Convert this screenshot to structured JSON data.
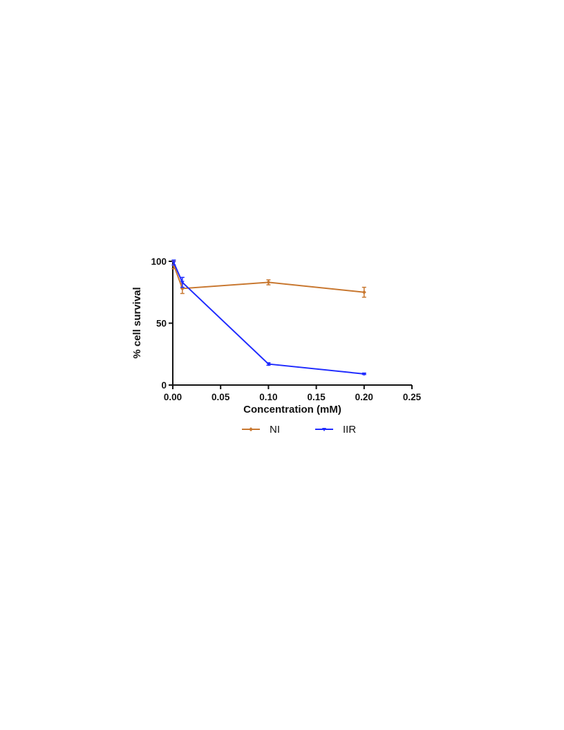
{
  "chart_data": {
    "type": "line",
    "xlabel": "Concentration (mM)",
    "ylabel": "% cell survival",
    "xlim": [
      0,
      0.25
    ],
    "ylim": [
      0,
      100
    ],
    "x_ticks": [
      "0.00",
      "0.05",
      "0.10",
      "0.15",
      "0.20",
      "0.25"
    ],
    "y_ticks": [
      "0",
      "50",
      "100"
    ],
    "grid": false,
    "legend_position": "bottom",
    "series": [
      {
        "name": "NI",
        "color": "#c8772f",
        "marker": "diamond",
        "x": [
          0.001,
          0.01,
          0.1,
          0.2
        ],
        "y": [
          97,
          78,
          83,
          75
        ],
        "error": [
          3,
          4,
          2,
          4
        ]
      },
      {
        "name": "IIR",
        "color": "#1f2bff",
        "marker": "triangle-down",
        "x": [
          0.001,
          0.01,
          0.1,
          0.2
        ],
        "y": [
          99,
          83,
          17,
          9
        ],
        "error": [
          2,
          4,
          1,
          0.5
        ]
      }
    ]
  }
}
